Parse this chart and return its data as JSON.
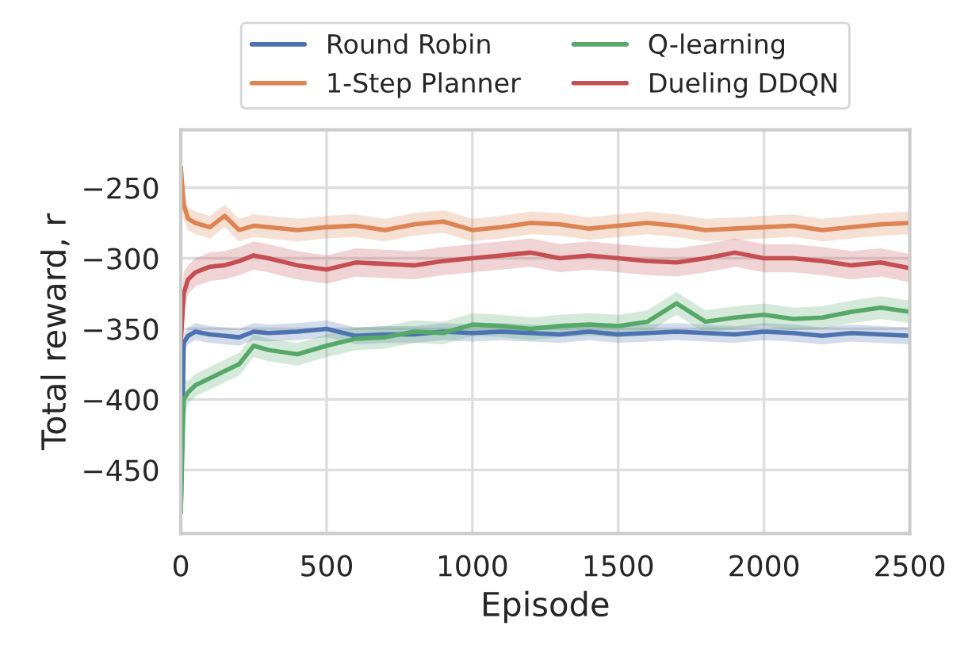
{
  "chart_data": {
    "type": "line",
    "xlabel": "Episode",
    "ylabel": "Total reward, r",
    "xlim": [
      0,
      2500
    ],
    "xticks": [
      0,
      500,
      1000,
      1500,
      2000,
      2500
    ],
    "ylim": [
      -495,
      -209
    ],
    "yticks": [
      -450,
      -400,
      -350,
      -300,
      -250
    ],
    "grid": true,
    "legend": "top",
    "line_style": "solid",
    "x": [
      0,
      10,
      25,
      50,
      100,
      150,
      200,
      250,
      300,
      400,
      500,
      600,
      700,
      800,
      900,
      1000,
      1100,
      1200,
      1300,
      1400,
      1500,
      1600,
      1700,
      1800,
      1900,
      2000,
      2100,
      2200,
      2300,
      2400,
      2500
    ],
    "series": [
      {
        "name": "Round Robin",
        "color": "#4c72b0",
        "values": [
          -480,
          -360,
          -355,
          -352,
          -354,
          -355,
          -356,
          -352,
          -353,
          -352,
          -350,
          -355,
          -354,
          -354,
          -352,
          -353,
          -352,
          -353,
          -354,
          -352,
          -354,
          -353,
          -352,
          -353,
          -354,
          -352,
          -353,
          -355,
          -353,
          -354,
          -355
        ],
        "lower": [
          -490,
          -366,
          -361,
          -358,
          -360,
          -361,
          -362,
          -358,
          -359,
          -358,
          -356,
          -361,
          -360,
          -360,
          -358,
          -359,
          -358,
          -359,
          -360,
          -358,
          -360,
          -359,
          -358,
          -359,
          -360,
          -358,
          -359,
          -361,
          -359,
          -360,
          -361
        ],
        "upper": [
          -460,
          -354,
          -349,
          -346,
          -348,
          -349,
          -350,
          -346,
          -347,
          -346,
          -344,
          -349,
          -348,
          -348,
          -346,
          -347,
          -346,
          -347,
          -348,
          -346,
          -348,
          -347,
          -346,
          -347,
          -348,
          -346,
          -347,
          -349,
          -347,
          -348,
          -349
        ]
      },
      {
        "name": "1-Step Planner",
        "color": "#dd8452",
        "values": [
          -235,
          -262,
          -272,
          -275,
          -278,
          -270,
          -280,
          -277,
          -278,
          -280,
          -278,
          -277,
          -280,
          -276,
          -274,
          -280,
          -278,
          -275,
          -276,
          -279,
          -277,
          -275,
          -277,
          -280,
          -279,
          -278,
          -277,
          -280,
          -278,
          -276,
          -275
        ],
        "lower": [
          -260,
          -272,
          -280,
          -283,
          -286,
          -278,
          -288,
          -285,
          -286,
          -288,
          -286,
          -285,
          -288,
          -284,
          -282,
          -288,
          -286,
          -283,
          -284,
          -287,
          -285,
          -283,
          -285,
          -288,
          -287,
          -286,
          -285,
          -288,
          -286,
          -284,
          -283
        ],
        "upper": [
          -215,
          -252,
          -264,
          -267,
          -270,
          -262,
          -272,
          -269,
          -270,
          -272,
          -270,
          -269,
          -272,
          -268,
          -266,
          -272,
          -270,
          -267,
          -268,
          -271,
          -269,
          -267,
          -269,
          -272,
          -271,
          -270,
          -269,
          -272,
          -270,
          -268,
          -267
        ]
      },
      {
        "name": "Q-learning",
        "color": "#55a868",
        "values": [
          -480,
          -400,
          -395,
          -390,
          -385,
          -380,
          -375,
          -362,
          -365,
          -368,
          -362,
          -357,
          -356,
          -352,
          -353,
          -347,
          -348,
          -350,
          -348,
          -347,
          -348,
          -345,
          -332,
          -345,
          -342,
          -340,
          -343,
          -342,
          -338,
          -335,
          -338
        ],
        "lower": [
          -490,
          -415,
          -403,
          -398,
          -393,
          -388,
          -383,
          -370,
          -373,
          -376,
          -370,
          -365,
          -364,
          -360,
          -361,
          -355,
          -356,
          -358,
          -356,
          -355,
          -356,
          -353,
          -340,
          -353,
          -350,
          -348,
          -351,
          -350,
          -346,
          -343,
          -346
        ],
        "upper": [
          -440,
          -385,
          -387,
          -382,
          -377,
          -372,
          -367,
          -354,
          -357,
          -360,
          -354,
          -349,
          -348,
          -344,
          -345,
          -339,
          -340,
          -342,
          -340,
          -339,
          -340,
          -337,
          -324,
          -337,
          -334,
          -332,
          -335,
          -334,
          -330,
          -327,
          -330
        ]
      },
      {
        "name": "Dueling DDQN",
        "color": "#c44e52",
        "values": [
          -360,
          -325,
          -315,
          -310,
          -306,
          -305,
          -302,
          -298,
          -300,
          -305,
          -308,
          -303,
          -304,
          -305,
          -302,
          -300,
          -298,
          -296,
          -300,
          -298,
          -300,
          -302,
          -303,
          -300,
          -296,
          -300,
          -300,
          -302,
          -305,
          -303,
          -307
        ],
        "lower": [
          -380,
          -340,
          -325,
          -320,
          -316,
          -315,
          -312,
          -308,
          -310,
          -315,
          -318,
          -313,
          -314,
          -315,
          -312,
          -310,
          -308,
          -306,
          -310,
          -308,
          -310,
          -312,
          -313,
          -310,
          -306,
          -310,
          -310,
          -312,
          -315,
          -313,
          -317
        ],
        "upper": [
          -340,
          -310,
          -305,
          -300,
          -296,
          -295,
          -292,
          -288,
          -290,
          -295,
          -298,
          -293,
          -294,
          -295,
          -292,
          -290,
          -288,
          -286,
          -290,
          -288,
          -290,
          -292,
          -293,
          -290,
          -286,
          -290,
          -290,
          -292,
          -295,
          -293,
          -297
        ]
      }
    ]
  }
}
